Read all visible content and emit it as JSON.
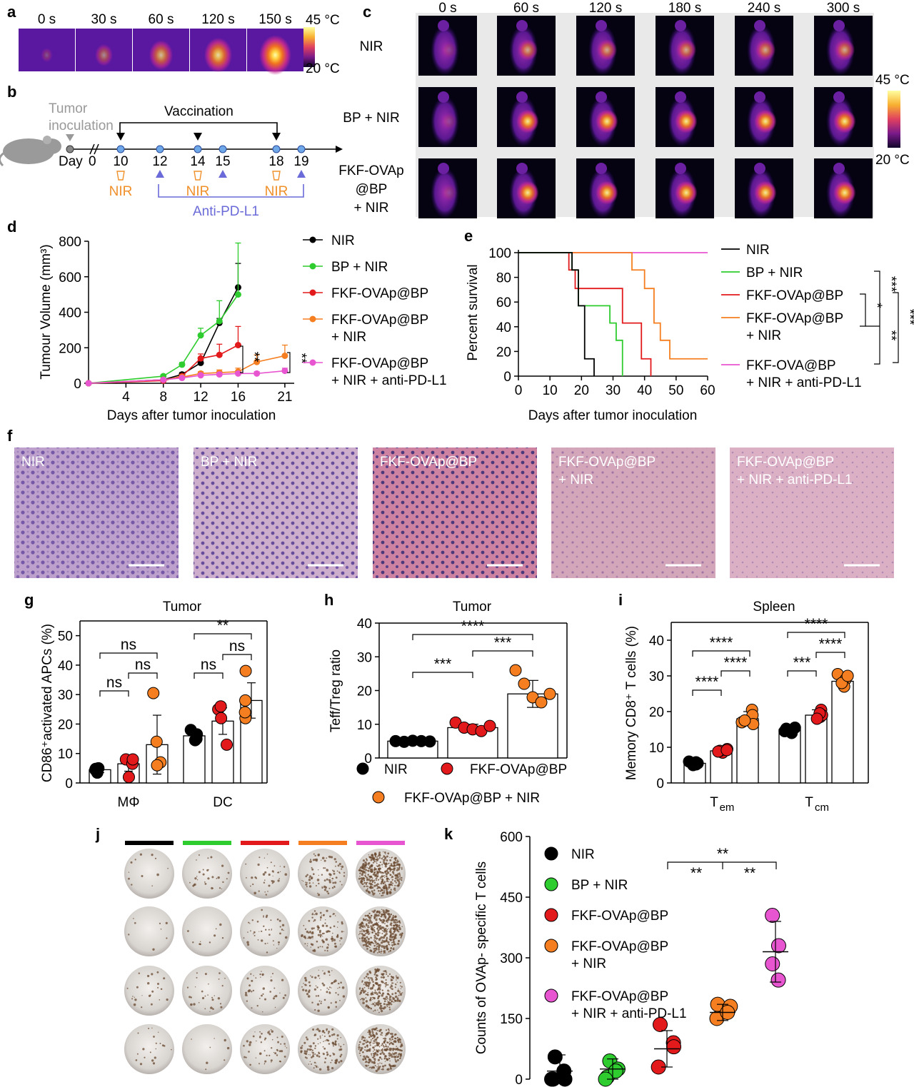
{
  "panels": {
    "a": {
      "label": "a",
      "times": [
        "0 s",
        "30 s",
        "60 s",
        "120 s",
        "150 s"
      ],
      "scale_max": "45 °C",
      "scale_min": "20 °C"
    },
    "b": {
      "label": "b",
      "tumor_inoculation_1": "Tumor",
      "tumor_inoculation_2": "inoculation",
      "vaccination": "Vaccination",
      "day_prefix": "Day",
      "day0": "0",
      "days": [
        "10",
        "12",
        "14",
        "15",
        "18",
        "19"
      ],
      "nir": "NIR",
      "anti_pd_l1": "Anti-PD-L1"
    },
    "c": {
      "label": "c",
      "times": [
        "0 s",
        "60 s",
        "120 s",
        "180 s",
        "240 s",
        "300 s"
      ],
      "rows": [
        {
          "lines": [
            "NIR"
          ]
        },
        {
          "lines": [
            "BP + NIR"
          ]
        },
        {
          "lines": [
            "FKF-OVAp",
            "@BP",
            "+ NIR"
          ]
        }
      ],
      "scale_max": "45 °C",
      "scale_min": "20 °C"
    },
    "f": {
      "label": "f",
      "images": [
        {
          "lines": [
            "NIR"
          ]
        },
        {
          "lines": [
            "BP + NIR"
          ]
        },
        {
          "lines": [
            "FKF-OVAp@BP"
          ]
        },
        {
          "lines": [
            "FKF-OVAp@BP",
            "+ NIR"
          ]
        },
        {
          "lines": [
            "FKF-OVAp@BP",
            "+ NIR + anti-PD-L1"
          ]
        }
      ]
    },
    "j": {
      "label": "j",
      "colors": [
        "#000000",
        "#2ecc2e",
        "#e31a1c",
        "#f57f20",
        "#e855d0"
      ]
    }
  },
  "chart_data": [
    {
      "id": "d",
      "panel_label": "d",
      "type": "line",
      "ylabel": "Tumour Volume (mm³)",
      "xlabel": "Days after tumor inoculation",
      "xlim": [
        0,
        22
      ],
      "ylim": [
        0,
        800
      ],
      "xticks": [
        "4",
        "8",
        "12",
        "16",
        "21"
      ],
      "yticks": [
        "0",
        "200",
        "400",
        "600",
        "800"
      ],
      "series": [
        {
          "name": "NIR",
          "color": "#000000",
          "x": [
            0,
            8,
            10,
            12,
            14,
            16
          ],
          "y": [
            0,
            20,
            50,
            115,
            340,
            540
          ],
          "err": [
            0,
            5,
            10,
            15,
            25,
            135
          ]
        },
        {
          "name": "BP + NIR",
          "color": "#2ecc2e",
          "x": [
            0,
            8,
            10,
            12,
            14,
            16
          ],
          "y": [
            0,
            40,
            105,
            270,
            350,
            500
          ],
          "err": [
            0,
            8,
            12,
            40,
            115,
            290
          ]
        },
        {
          "name": "FKF-OVAp@BP",
          "color": "#e31a1c",
          "x": [
            0,
            8,
            10,
            12,
            14,
            16
          ],
          "y": [
            0,
            15,
            40,
            140,
            160,
            215
          ],
          "err": [
            0,
            5,
            10,
            25,
            60,
            105
          ]
        },
        {
          "name": "FKF-OVAp@BP + NIR",
          "color": "#f57f20",
          "x": [
            0,
            8,
            10,
            12,
            14,
            16,
            18,
            21
          ],
          "y": [
            0,
            20,
            35,
            55,
            60,
            65,
            120,
            155
          ],
          "err": [
            0,
            5,
            8,
            10,
            15,
            20,
            40,
            60
          ]
        },
        {
          "name": "FKF-OVAp@BP + NIR + anti-PD-L1",
          "color": "#e855d0",
          "x": [
            0,
            8,
            10,
            12,
            14,
            16,
            18,
            21
          ],
          "y": [
            0,
            20,
            30,
            45,
            50,
            55,
            55,
            70
          ],
          "err": [
            0,
            5,
            5,
            8,
            10,
            10,
            10,
            15
          ]
        }
      ],
      "legend": [
        {
          "color": "#000000",
          "lines": [
            "NIR"
          ]
        },
        {
          "color": "#2ecc2e",
          "lines": [
            "BP + NIR"
          ]
        },
        {
          "color": "#e31a1c",
          "lines": [
            "FKF-OVAp@BP"
          ]
        },
        {
          "color": "#f57f20",
          "lines": [
            "FKF-OVAp@BP",
            "+ NIR"
          ]
        },
        {
          "color": "#e855d0",
          "lines": [
            "FKF-OVAp@BP",
            "+ NIR + anti-PD-L1"
          ]
        }
      ],
      "sig": [
        "**",
        "**"
      ]
    },
    {
      "id": "e",
      "panel_label": "e",
      "type": "line",
      "ylabel": "Percent survival",
      "xlabel": "Days after tumor inoculation",
      "xlim": [
        0,
        60
      ],
      "ylim": [
        0,
        100
      ],
      "xticks": [
        "0",
        "10",
        "20",
        "30",
        "40",
        "50",
        "60"
      ],
      "yticks": [
        "0",
        "20",
        "40",
        "60",
        "80",
        "100"
      ],
      "series": [
        {
          "name": "NIR",
          "color": "#000000",
          "x": [
            0,
            17,
            17,
            19,
            19,
            21,
            21,
            22,
            22,
            24,
            24
          ],
          "y": [
            100,
            100,
            86,
            86,
            57,
            57,
            14,
            14,
            14,
            14,
            0
          ]
        },
        {
          "name": "BP + NIR",
          "color": "#2ecc2e",
          "x": [
            0,
            17,
            17,
            19,
            19,
            26,
            26,
            29,
            29,
            31,
            31,
            33,
            33
          ],
          "y": [
            100,
            100,
            86,
            86,
            57,
            57,
            57,
            57,
            43,
            43,
            29,
            29,
            0
          ]
        },
        {
          "name": "FKF-OVAp@BP",
          "color": "#e31a1c",
          "x": [
            0,
            16,
            16,
            18,
            18,
            33,
            33,
            39,
            39,
            40,
            40,
            42,
            42
          ],
          "y": [
            100,
            100,
            86,
            86,
            71,
            71,
            43,
            43,
            14,
            14,
            14,
            14,
            0
          ]
        },
        {
          "name": "FKF-OVAp@BP + NIR",
          "color": "#f57f20",
          "x": [
            0,
            36,
            36,
            40,
            40,
            43,
            43,
            45,
            45,
            48,
            48,
            60
          ],
          "y": [
            100,
            100,
            86,
            86,
            71,
            71,
            43,
            43,
            29,
            29,
            14,
            14
          ]
        },
        {
          "name": "FKF-OVA@BP + NIR + anti-PD-L1",
          "color": "#e855d0",
          "x": [
            0,
            60
          ],
          "y": [
            100,
            100
          ]
        }
      ],
      "legend": [
        {
          "color": "#000000",
          "lines": [
            "NIR"
          ]
        },
        {
          "color": "#2ecc2e",
          "lines": [
            "BP + NIR"
          ]
        },
        {
          "color": "#e31a1c",
          "lines": [
            "FKF-OVAp@BP"
          ]
        },
        {
          "color": "#f57f20",
          "lines": [
            "FKF-OVAp@BP",
            "+ NIR"
          ]
        },
        {
          "color": "#e855d0",
          "lines": [
            "FKF-OVA@BP",
            "+ NIR + anti-PD-L1"
          ]
        }
      ],
      "sig": [
        "*",
        "***",
        "**",
        "***"
      ]
    },
    {
      "id": "g",
      "panel_label": "g",
      "type": "bar",
      "title": "Tumor",
      "ylabel": "CD86⁺activated APCs (%)",
      "ylim": [
        0,
        55
      ],
      "yticks": [
        "0",
        "10",
        "20",
        "30",
        "40",
        "50"
      ],
      "groups": [
        "MΦ",
        "DC"
      ],
      "series": [
        {
          "color": "#000000",
          "values": [
            4.5,
            16
          ],
          "sd": [
            1,
            1.5
          ],
          "points": [
            [
              3.5,
              5,
              4.5,
              4.8
            ],
            [
              14.5,
              18,
              16.5,
              15
            ]
          ]
        },
        {
          "color": "#e31a1c",
          "values": [
            6.5,
            21
          ],
          "sd": [
            2.5,
            4.5
          ],
          "points": [
            [
              2,
              8,
              6.5,
              8
            ],
            [
              13,
              25,
              22,
              26
            ]
          ]
        },
        {
          "color": "#f57f20",
          "values": [
            13,
            28
          ],
          "sd": [
            10,
            6
          ],
          "points": [
            [
              7,
              30.5,
              14,
              6
            ],
            [
              22,
              38,
              28,
              24
            ]
          ]
        }
      ],
      "sig": [
        "ns",
        "ns",
        "ns",
        "ns",
        "ns",
        "**"
      ]
    },
    {
      "id": "h",
      "panel_label": "h",
      "type": "bar",
      "title": "Tumor",
      "ylabel": "Teff/Treg ratio",
      "ylim": [
        0,
        40
      ],
      "yticks": [
        "0",
        "10",
        "20",
        "30",
        "40"
      ],
      "series": [
        {
          "name": "NIR",
          "color": "#000000",
          "value": 5,
          "sd": 0.3,
          "points": [
            5,
            4.8,
            5.1,
            5,
            4.9
          ]
        },
        {
          "name": "FKF-OVAp@BP",
          "color": "#e31a1c",
          "value": 9,
          "sd": 1,
          "points": [
            10.5,
            9,
            8.5,
            8,
            9.5
          ]
        },
        {
          "name": "FKF-OVAp@BP + NIR",
          "color": "#f57f20",
          "value": 19,
          "sd": 4,
          "points": [
            26,
            22,
            18,
            16.5,
            19
          ]
        }
      ],
      "sig": [
        "***",
        "***",
        "****"
      ]
    },
    {
      "id": "i",
      "panel_label": "i",
      "type": "bar",
      "title": "Spleen",
      "ylabel": "Memory CD8⁺ T cells (%)",
      "ylim": [
        0,
        45
      ],
      "yticks": [
        "0",
        "10",
        "20",
        "30",
        "40"
      ],
      "groups": [
        "em",
        "cm"
      ],
      "series": [
        {
          "color": "#000000",
          "values": [
            5.5,
            15
          ],
          "sd": [
            0.5,
            1
          ],
          "points": [
            [
              5,
              6,
              5.5,
              5.8,
              5.2
            ],
            [
              14,
              15.5,
              15,
              14.5,
              15.2
            ]
          ]
        },
        {
          "color": "#e31a1c",
          "values": [
            9,
            19
          ],
          "sd": [
            0.8,
            1.5
          ],
          "points": [
            [
              8.5,
              9.5,
              9,
              8.8,
              9.2
            ],
            [
              20.5,
              18.5,
              19,
              19.5,
              18
            ]
          ]
        },
        {
          "color": "#f57f20",
          "values": [
            18,
            28.5
          ],
          "sd": [
            2,
            2
          ],
          "points": [
            [
              20.5,
              19,
              17,
              16.5,
              17.5
            ],
            [
              30.5,
              29,
              27,
              28,
              30
            ]
          ]
        }
      ],
      "sig": [
        "****",
        "****",
        "****",
        "***",
        "****",
        "****"
      ]
    },
    {
      "id": "k",
      "panel_label": "k",
      "type": "scatter",
      "ylabel": "Counts of OVAp- specific T cells",
      "ylim": [
        0,
        600
      ],
      "yticks": [
        "0",
        "150",
        "300",
        "450",
        "600"
      ],
      "series": [
        {
          "name": "NIR",
          "color": "#000000",
          "mean": 20,
          "sd": 40,
          "points": [
            55,
            20,
            0,
            0,
            0
          ]
        },
        {
          "name": "BP + NIR",
          "color": "#2ecc2e",
          "mean": 25,
          "sd": 25,
          "points": [
            45,
            25,
            5,
            20,
            0
          ]
        },
        {
          "name": "FKF-OVAp@BP",
          "color": "#e31a1c",
          "mean": 75,
          "sd": 45,
          "points": [
            135,
            90,
            30,
            80
          ]
        },
        {
          "name": "FKF-OVAp@BP + NIR",
          "color": "#f57f20",
          "mean": 165,
          "sd": 20,
          "points": [
            185,
            180,
            150,
            165
          ]
        },
        {
          "name": "FKF-OVAp@BP + NIR + anti-PD-L1",
          "color": "#e855d0",
          "mean": 315,
          "sd": 75,
          "points": [
            405,
            330,
            285,
            245
          ]
        }
      ],
      "legend": [
        {
          "color": "#000000",
          "lines": [
            "NIR"
          ]
        },
        {
          "color": "#2ecc2e",
          "lines": [
            "BP + NIR"
          ]
        },
        {
          "color": "#e31a1c",
          "lines": [
            "FKF-OVAp@BP"
          ]
        },
        {
          "color": "#f57f20",
          "lines": [
            "FKF-OVAp@BP",
            "+ NIR"
          ]
        },
        {
          "color": "#e855d0",
          "lines": [
            "FKF-OVAp@BP",
            "+ NIR + anti-PD-L1"
          ]
        }
      ],
      "sig": [
        "**",
        "**",
        "**"
      ]
    }
  ]
}
